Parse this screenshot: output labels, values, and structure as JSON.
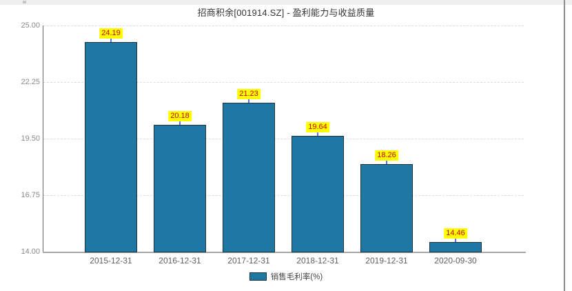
{
  "window": {
    "top_strip_color": "#efefef",
    "edge_line_color": "#8c8c8c"
  },
  "header": {
    "title": "招商积余[001914.SZ] - 盈利能力与收益质量"
  },
  "chart_data": {
    "type": "bar",
    "title": "招商积余[001914.SZ] - 盈利能力与收益质量",
    "categories": [
      "2015-12-31",
      "2016-12-31",
      "2017-12-31",
      "2018-12-31",
      "2019-12-31",
      "2020-09-30"
    ],
    "series": [
      {
        "name": "销售毛利率(%)",
        "values": [
          24.19,
          20.18,
          21.23,
          19.64,
          18.26,
          14.46
        ]
      }
    ],
    "value_labels": [
      "24.19",
      "20.18",
      "21.23",
      "19.64",
      "18.26",
      "14.46"
    ],
    "xlabel": "",
    "ylabel": "",
    "ylim": [
      14.0,
      25.0
    ],
    "yticks": [
      "25.00",
      "22.25",
      "19.50",
      "16.75",
      "14.00"
    ],
    "grid": "horizontal-dashed",
    "legend_position": "bottom-center",
    "bar_color": "#1f78a4",
    "bar_border_color": "#17313f",
    "connector_color": "#5b76d8",
    "value_label_bg": "#ffff00",
    "value_label_color": "#cc0000"
  },
  "legend": {
    "items": [
      {
        "label": "销售毛利率(%)",
        "color": "#1f78a4"
      }
    ]
  }
}
